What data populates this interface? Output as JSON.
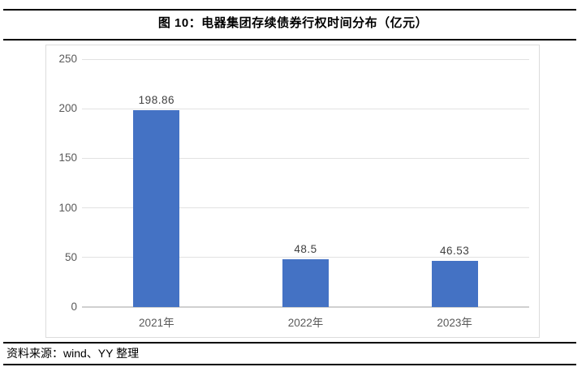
{
  "figure": {
    "title": "图 10：电器集团存续债券行权时间分布（亿元）",
    "source": "资料来源：wind、YY 整理"
  },
  "colors": {
    "bar": "#4472C4",
    "gridline": "#E2E2E2",
    "baseline": "#D0D0D0",
    "axis_text": "#595959",
    "value_text": "#404040",
    "box_border": "#DCDCDC",
    "rule": "#000000",
    "background": "#FFFFFF"
  },
  "chart_data": {
    "type": "bar",
    "title": "图 10：电器集团存续债券行权时间分布（亿元）",
    "categories": [
      "2021年",
      "2022年",
      "2023年"
    ],
    "values": [
      198.86,
      48.5,
      46.53
    ],
    "value_labels": [
      "198.86",
      "48.5",
      "46.53"
    ],
    "xlabel": "",
    "ylabel": "",
    "ylim": [
      0,
      250
    ],
    "yticks": [
      0,
      50,
      100,
      150,
      200,
      250
    ],
    "grid": true,
    "legend_position": "none"
  }
}
